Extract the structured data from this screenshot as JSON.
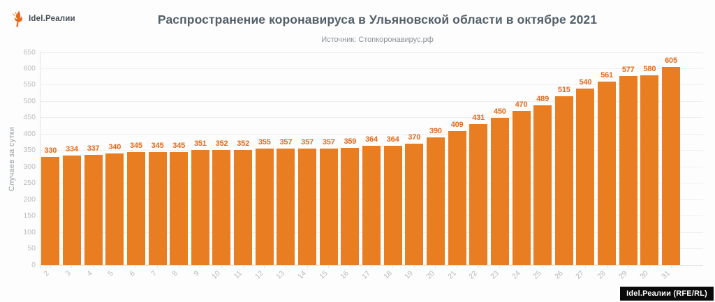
{
  "header": {
    "brand": "Idel.Реалии"
  },
  "footer": {
    "attribution": "Idel.Реалии (RFE/RL)"
  },
  "colors": {
    "bar": "#e87d21",
    "value_label": "#e5691a",
    "title": "#535f6a",
    "subtitle": "#8a949b",
    "axis_text": "#b6babd",
    "grid": "#efefef",
    "axis_line": "#e2e2e2",
    "badge_bg": "#0a0a0a",
    "badge_text": "#ffffff",
    "brand_orange": "#e8671b"
  },
  "chart_data": {
    "type": "bar",
    "title": "Распространение коронавируса в Ульяновской области в октябре 2021",
    "subtitle": "Источник: Стопкоронавирус.рф",
    "ylabel": "Случаев за сутки",
    "xlabel": "",
    "categories": [
      "2",
      "3",
      "4",
      "5",
      "6",
      "7",
      "8",
      "9",
      "10",
      "11",
      "12",
      "13",
      "14",
      "15",
      "16",
      "17",
      "18",
      "19",
      "20",
      "21",
      "22",
      "23",
      "24",
      "25",
      "26",
      "27",
      "28",
      "29",
      "30",
      "31"
    ],
    "values": [
      330,
      334,
      337,
      340,
      345,
      345,
      345,
      351,
      352,
      352,
      355,
      357,
      357,
      357,
      359,
      364,
      364,
      370,
      390,
      409,
      431,
      450,
      470,
      489,
      515,
      540,
      561,
      577,
      580,
      605
    ],
    "ylim": [
      0,
      650
    ],
    "ytick_step": 50,
    "grid": true,
    "legend": "none",
    "bar_value_labels": true
  }
}
